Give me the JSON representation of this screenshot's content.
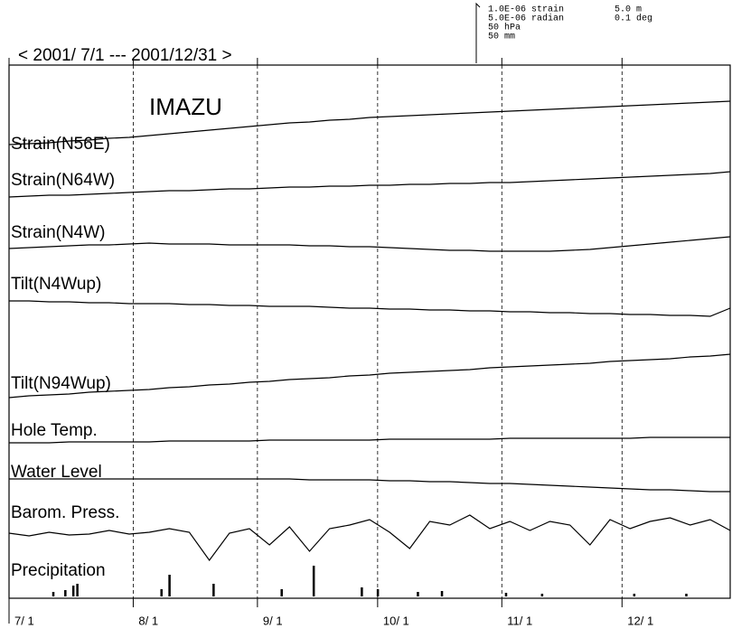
{
  "chart_data": {
    "type": "line",
    "title": "< 2001/ 7/1 --- 2001/12/31 >",
    "subtitle": "IMAZU",
    "scale_labels": [
      "1.0E-06 strain",
      "5.0E-06 radian",
      "50 hPa",
      "50 mm",
      "5.0 m",
      "0.1 deg"
    ],
    "color": "#000000",
    "grid": true,
    "xlim": [
      0,
      180
    ],
    "xticks": [
      {
        "value": 0,
        "label": "7/ 1"
      },
      {
        "value": 31,
        "label": "8/ 1"
      },
      {
        "value": 62,
        "label": "9/ 1"
      },
      {
        "value": 92,
        "label": "10/ 1"
      },
      {
        "value": 123,
        "label": "11/ 1"
      },
      {
        "value": 153,
        "label": "12/ 1"
      }
    ],
    "x": [
      0,
      5,
      10,
      15,
      20,
      25,
      30,
      35,
      40,
      45,
      50,
      55,
      60,
      65,
      70,
      75,
      80,
      85,
      90,
      95,
      100,
      105,
      110,
      115,
      120,
      125,
      130,
      135,
      140,
      145,
      150,
      155,
      160,
      165,
      170,
      175,
      180
    ],
    "series": [
      {
        "name": "Strain(N56E)",
        "values": [
          0,
          1,
          2,
          4,
          5,
          7,
          8,
          10,
          12,
          14,
          16,
          18,
          20,
          22,
          24,
          25,
          27,
          28,
          30,
          31,
          32,
          33,
          34,
          35,
          36,
          37,
          38,
          39,
          40,
          41,
          42,
          43,
          44,
          45,
          46,
          47,
          48
        ]
      },
      {
        "name": "Strain(N64W)",
        "values": [
          0,
          1,
          2,
          2,
          3,
          4,
          5,
          6,
          7,
          7,
          8,
          9,
          9,
          10,
          11,
          11,
          12,
          12,
          13,
          13,
          14,
          14,
          15,
          15,
          16,
          16,
          17,
          18,
          19,
          20,
          21,
          22,
          23,
          24,
          25,
          26,
          28
        ]
      },
      {
        "name": "Strain(N4W)",
        "values": [
          0,
          1,
          2,
          3,
          4,
          4,
          5,
          6,
          5,
          5,
          5,
          4,
          4,
          4,
          4,
          3,
          3,
          2,
          2,
          1,
          0,
          -1,
          -2,
          -2,
          -3,
          -3,
          -3,
          -3,
          -2,
          -1,
          1,
          3,
          5,
          7,
          9,
          11,
          13
        ]
      },
      {
        "name": "Tilt(N4Wup)",
        "values": [
          0,
          0,
          -1,
          -1,
          -2,
          -2,
          -3,
          -3,
          -3,
          -4,
          -4,
          -5,
          -5,
          -6,
          -6,
          -6,
          -7,
          -8,
          -8,
          -9,
          -9,
          -10,
          -10,
          -11,
          -11,
          -12,
          -12,
          -13,
          -13,
          -14,
          -14,
          -15,
          -15,
          -16,
          -16,
          -17,
          -8
        ]
      },
      {
        "name": "Tilt(N94Wup)",
        "values": [
          0,
          2,
          3,
          4,
          6,
          7,
          8,
          9,
          11,
          12,
          14,
          15,
          17,
          18,
          20,
          21,
          22,
          24,
          25,
          27,
          28,
          29,
          30,
          31,
          33,
          34,
          35,
          36,
          37,
          38,
          40,
          41,
          42,
          43,
          45,
          46,
          48
        ]
      },
      {
        "name": "Hole Temp.",
        "values": [
          0,
          0,
          0,
          1,
          1,
          1,
          1,
          1,
          2,
          2,
          2,
          2,
          2,
          3,
          3,
          3,
          3,
          3,
          3,
          4,
          4,
          4,
          4,
          4,
          4,
          5,
          5,
          5,
          5,
          5,
          5,
          5,
          6,
          6,
          6,
          6,
          6
        ]
      },
      {
        "name": "Water Level",
        "values": [
          0,
          0,
          0,
          0,
          0,
          0,
          0,
          0,
          0,
          0,
          0,
          0,
          0,
          0,
          0,
          -1,
          -1,
          -1,
          -1,
          -2,
          -2,
          -3,
          -3,
          -4,
          -5,
          -5,
          -6,
          -7,
          -8,
          -9,
          -10,
          -11,
          -12,
          -12,
          -13,
          -14,
          -14
        ]
      },
      {
        "name": "Barom. Press.",
        "values": [
          5,
          2,
          6,
          3,
          4,
          8,
          4,
          6,
          10,
          6,
          -25,
          5,
          10,
          -8,
          12,
          -15,
          10,
          14,
          20,
          6,
          -12,
          18,
          14,
          25,
          10,
          18,
          8,
          18,
          14,
          -8,
          20,
          10,
          18,
          22,
          14,
          20,
          8
        ]
      },
      {
        "name": "Precipitation",
        "type": "bar",
        "x": [
          11,
          14,
          16,
          17,
          38,
          40,
          51,
          68,
          76,
          88,
          92,
          102,
          108,
          124,
          133,
          156,
          169
        ],
        "values": [
          5,
          7,
          12,
          14,
          8,
          24,
          14,
          8,
          34,
          10,
          8,
          5,
          6,
          4,
          3,
          3,
          3
        ]
      }
    ]
  }
}
